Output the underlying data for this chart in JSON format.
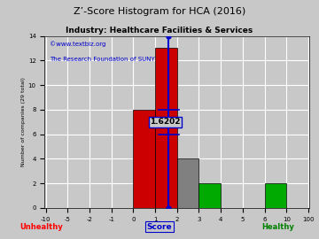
{
  "title": "Z’-Score Histogram for HCA (2016)",
  "subtitle": "Industry: Healthcare Facilities & Services",
  "watermark1": "©www.textbiz.org",
  "watermark2": "The Research Foundation of SUNY",
  "ylabel": "Number of companies (29 total)",
  "xlabel": "Score",
  "xlabel_color": "#0000cc",
  "unhealthy_label": "Unhealthy",
  "healthy_label": "Healthy",
  "bar_edges": [
    -10,
    -5,
    -2,
    -1,
    0,
    1,
    2,
    3,
    4,
    5,
    6,
    10,
    100
  ],
  "bar_heights": [
    0,
    0,
    0,
    0,
    8,
    13,
    4,
    2,
    0,
    0,
    2,
    0
  ],
  "bar_colors": [
    "#cc0000",
    "#cc0000",
    "#cc0000",
    "#cc0000",
    "#cc0000",
    "#cc0000",
    "#808080",
    "#00aa00",
    "#00aa00",
    "#00aa00",
    "#00aa00",
    "#00aa00"
  ],
  "hca_score": 1.6202,
  "hca_score_label": "1.6202",
  "ylim": [
    0,
    14
  ],
  "yticks": [
    0,
    2,
    4,
    6,
    8,
    10,
    12,
    14
  ],
  "xtick_labels": [
    "-10",
    "-5",
    "-2",
    "-1",
    "0",
    "1",
    "2",
    "3",
    "4",
    "5",
    "6",
    "10",
    "100"
  ],
  "bg_color": "#c8c8c8",
  "plot_bg_color": "#c8c8c8",
  "grid_color": "#ffffff",
  "title_color": "#000000",
  "subtitle_color": "#000000",
  "watermark_color": "#0000cc",
  "bar_border_color": "#000000",
  "vline_color": "#0000cc"
}
